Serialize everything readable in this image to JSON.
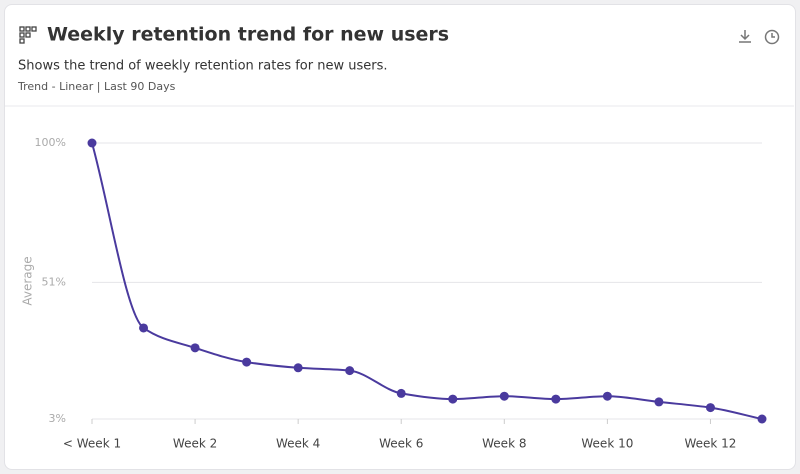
{
  "header": {
    "title": "Weekly retention trend for new users",
    "subtitle": "Shows the trend of weekly retention rates for new users.",
    "meta": "Trend - Linear | Last 90 Days"
  },
  "chart_data": {
    "type": "line",
    "y_label": "Average",
    "categories": [
      "< Week 1",
      null,
      "Week 2",
      null,
      "Week 4",
      null,
      "Week 6",
      null,
      "Week 8",
      null,
      "Week 10",
      null,
      "Week 12",
      null
    ],
    "series": [
      {
        "name": "Average",
        "color": "#4a3a9e",
        "values": [
          100,
          35,
          28,
          23,
          21,
          20,
          12,
          10,
          11,
          10,
          11,
          9,
          7,
          3
        ]
      }
    ],
    "ylim": [
      3,
      100
    ],
    "yticks": [
      {
        "value": 3,
        "label": "3%"
      },
      {
        "value": 51,
        "label": "51%"
      },
      {
        "value": 100,
        "label": "100%"
      }
    ],
    "grid": true
  }
}
